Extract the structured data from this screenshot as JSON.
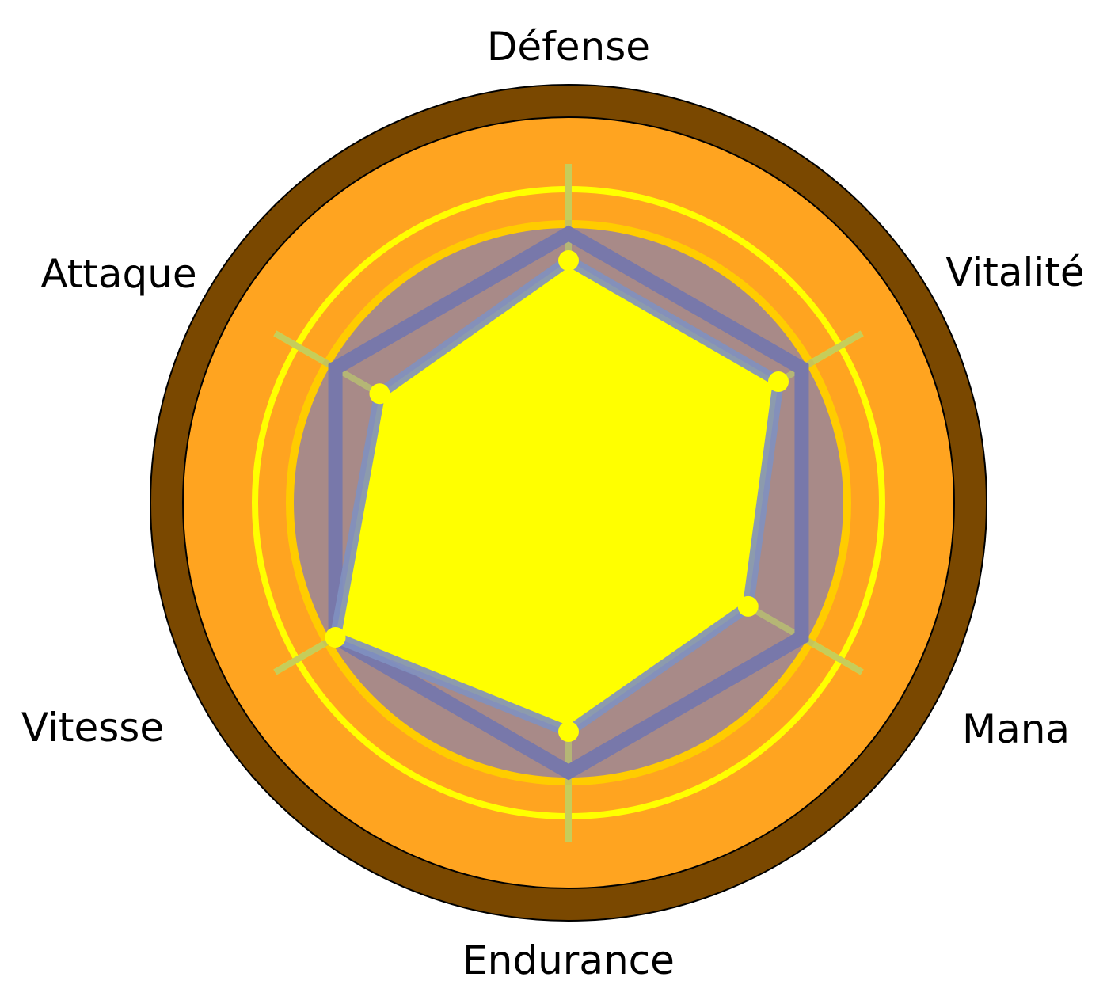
{
  "chart_data": {
    "type": "radar",
    "title": "",
    "categories": [
      "Défense",
      "Vitalité",
      "Mana",
      "Endurance",
      "Vitesse",
      "Attaque"
    ],
    "series": [
      {
        "values": [
          90,
          90,
          77,
          85,
          100,
          81
        ]
      }
    ],
    "rlim": [
      0,
      100
    ],
    "grid": true,
    "colors": {
      "outer_ring": "#7a4800",
      "background": "#ffa420",
      "ring": "#ffff00",
      "grid_circle_stroke": "#ffcc00",
      "grid_circle_fill": "#a88a88",
      "max_hexagon": "#7878aa",
      "series_fill": "#ffff00",
      "series_stroke": "#8090c0",
      "axis": "#ffff00"
    }
  }
}
